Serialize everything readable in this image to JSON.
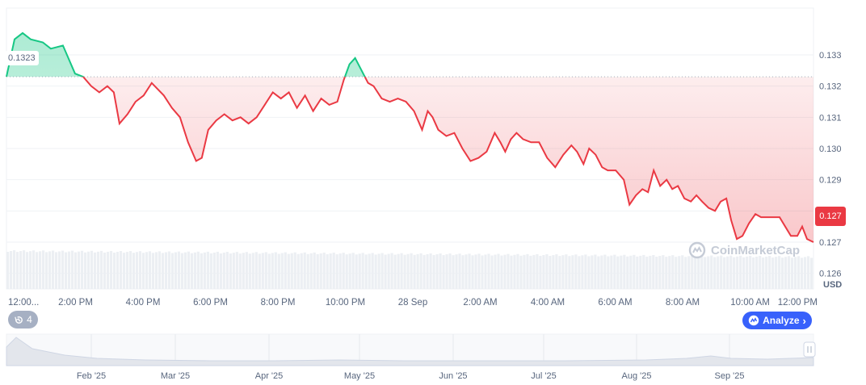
{
  "chart_data": {
    "type": "area",
    "unit": "USD",
    "x_labels": [
      "12:00...",
      "2:00 PM",
      "4:00 PM",
      "6:00 PM",
      "8:00 PM",
      "10:00 PM",
      "28 Sep",
      "2:00 AM",
      "4:00 AM",
      "6:00 AM",
      "8:00 AM",
      "10:00 AM",
      "12:00 PM"
    ],
    "y_ticks": [
      "0.126",
      "0.127",
      "0.128",
      "0.129",
      "0.130",
      "0.131",
      "0.132",
      "0.133"
    ],
    "ylim": [
      0.1255,
      0.1345
    ],
    "reference_value": 0.1323,
    "reference_label": "0.1323",
    "last_value": 0.127,
    "last_label": "0.127",
    "colors": {
      "up": "#16c784",
      "down": "#ea3943",
      "reference_line": "#a6b0c3"
    },
    "grid": true,
    "points": [
      [
        0.0,
        0.1323
      ],
      [
        0.01,
        0.1335
      ],
      [
        0.02,
        0.1337
      ],
      [
        0.03,
        0.1335
      ],
      [
        0.045,
        0.1334
      ],
      [
        0.055,
        0.1332
      ],
      [
        0.07,
        0.1333
      ],
      [
        0.085,
        0.1324
      ],
      [
        0.095,
        0.1323
      ],
      [
        0.105,
        0.132
      ],
      [
        0.115,
        0.1318
      ],
      [
        0.125,
        0.132
      ],
      [
        0.133,
        0.1318
      ],
      [
        0.14,
        0.1308
      ],
      [
        0.15,
        0.1311
      ],
      [
        0.16,
        0.1315
      ],
      [
        0.17,
        0.1317
      ],
      [
        0.18,
        0.1321
      ],
      [
        0.195,
        0.1317
      ],
      [
        0.205,
        0.1313
      ],
      [
        0.215,
        0.131
      ],
      [
        0.225,
        0.1302
      ],
      [
        0.235,
        0.1296
      ],
      [
        0.242,
        0.1297
      ],
      [
        0.25,
        0.1306
      ],
      [
        0.26,
        0.1309
      ],
      [
        0.27,
        0.1311
      ],
      [
        0.28,
        0.1309
      ],
      [
        0.29,
        0.131
      ],
      [
        0.3,
        0.1308
      ],
      [
        0.31,
        0.131
      ],
      [
        0.32,
        0.1314
      ],
      [
        0.33,
        0.1318
      ],
      [
        0.34,
        0.1316
      ],
      [
        0.35,
        0.1318
      ],
      [
        0.36,
        0.1313
      ],
      [
        0.37,
        0.1317
      ],
      [
        0.38,
        0.1312
      ],
      [
        0.39,
        0.1316
      ],
      [
        0.4,
        0.1314
      ],
      [
        0.41,
        0.1315
      ],
      [
        0.418,
        0.1322
      ],
      [
        0.425,
        0.1327
      ],
      [
        0.432,
        0.1329
      ],
      [
        0.44,
        0.1325
      ],
      [
        0.448,
        0.1321
      ],
      [
        0.455,
        0.132
      ],
      [
        0.465,
        0.1316
      ],
      [
        0.475,
        0.1315
      ],
      [
        0.485,
        0.1316
      ],
      [
        0.495,
        0.1315
      ],
      [
        0.505,
        0.1312
      ],
      [
        0.515,
        0.1306
      ],
      [
        0.522,
        0.1312
      ],
      [
        0.528,
        0.131
      ],
      [
        0.535,
        0.1306
      ],
      [
        0.545,
        0.1304
      ],
      [
        0.555,
        0.1305
      ],
      [
        0.565,
        0.13
      ],
      [
        0.575,
        0.1296
      ],
      [
        0.585,
        0.1297
      ],
      [
        0.595,
        0.1299
      ],
      [
        0.605,
        0.1305
      ],
      [
        0.612,
        0.1302
      ],
      [
        0.618,
        0.1299
      ],
      [
        0.625,
        0.1303
      ],
      [
        0.632,
        0.1305
      ],
      [
        0.64,
        0.1303
      ],
      [
        0.65,
        0.1302
      ],
      [
        0.66,
        0.1302
      ],
      [
        0.67,
        0.1297
      ],
      [
        0.68,
        0.1294
      ],
      [
        0.69,
        0.1298
      ],
      [
        0.7,
        0.1301
      ],
      [
        0.707,
        0.1299
      ],
      [
        0.715,
        0.1295
      ],
      [
        0.722,
        0.13
      ],
      [
        0.73,
        0.1298
      ],
      [
        0.738,
        0.1294
      ],
      [
        0.745,
        0.1293
      ],
      [
        0.755,
        0.1293
      ],
      [
        0.765,
        0.129
      ],
      [
        0.772,
        0.1282
      ],
      [
        0.78,
        0.1285
      ],
      [
        0.788,
        0.1287
      ],
      [
        0.795,
        0.1286
      ],
      [
        0.802,
        0.1293
      ],
      [
        0.81,
        0.1288
      ],
      [
        0.818,
        0.129
      ],
      [
        0.825,
        0.1287
      ],
      [
        0.832,
        0.1288
      ],
      [
        0.84,
        0.1284
      ],
      [
        0.848,
        0.1283
      ],
      [
        0.855,
        0.1285
      ],
      [
        0.862,
        0.1283
      ],
      [
        0.87,
        0.1281
      ],
      [
        0.878,
        0.128
      ],
      [
        0.885,
        0.1283
      ],
      [
        0.892,
        0.1284
      ],
      [
        0.898,
        0.1277
      ],
      [
        0.905,
        0.1271
      ],
      [
        0.912,
        0.1272
      ],
      [
        0.92,
        0.1276
      ],
      [
        0.928,
        0.1279
      ],
      [
        0.935,
        0.1278
      ],
      [
        0.942,
        0.1278
      ],
      [
        0.95,
        0.1278
      ],
      [
        0.958,
        0.1278
      ],
      [
        0.965,
        0.1275
      ],
      [
        0.972,
        0.1272
      ],
      [
        0.98,
        0.1272
      ],
      [
        0.986,
        0.1275
      ],
      [
        0.992,
        0.1271
      ],
      [
        1.0,
        0.127
      ]
    ]
  },
  "navigator": {
    "month_labels": [
      "Feb '25",
      "Mar '25",
      "Apr '25",
      "May '25",
      "Jun '25",
      "Jul '25",
      "Aug '25",
      "Sep '25"
    ]
  },
  "ui": {
    "history_count": "4",
    "analyze_label": "Analyze",
    "usd_label": "USD",
    "watermark": "CoinMarketCap"
  }
}
